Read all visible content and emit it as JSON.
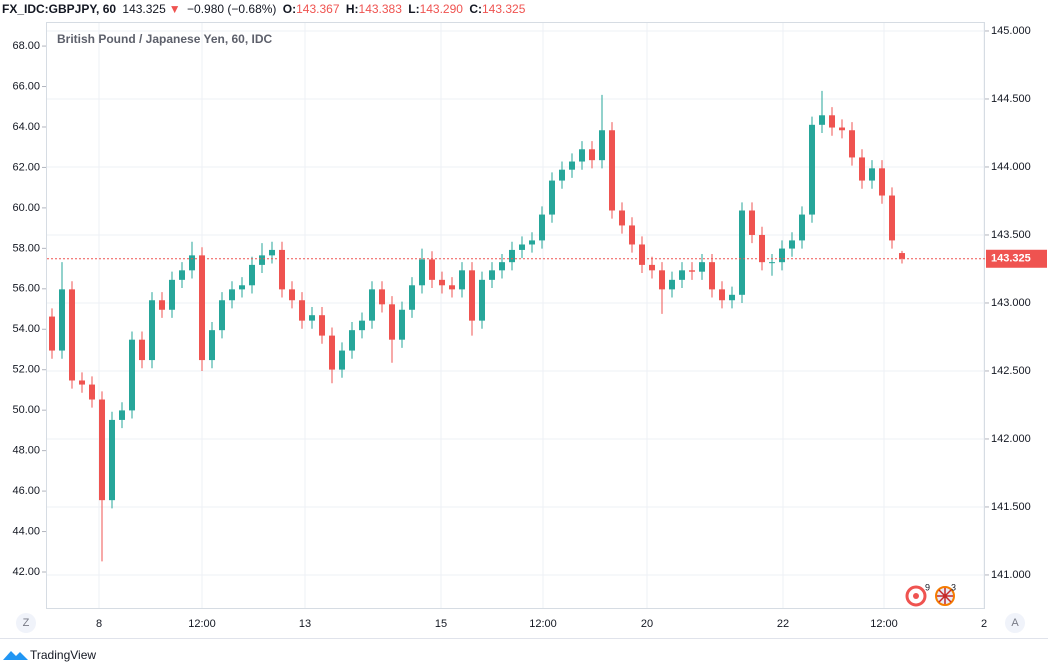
{
  "header": {
    "symbol": "FX_IDC:GBPJPY, 60",
    "last": "143.325",
    "arrow": "▼",
    "change": "−0.980 (−0.68%)",
    "ohlc": [
      {
        "label": "O:",
        "value": "143.367"
      },
      {
        "label": "H:",
        "value": "143.383"
      },
      {
        "label": "L:",
        "value": "143.290"
      },
      {
        "label": "C:",
        "value": "143.325"
      }
    ]
  },
  "chart_data": {
    "type": "candlestick",
    "title": "British Pound / Japanese Yen, 60, IDC",
    "open": [
      142.9,
      142.65,
      143.1,
      142.43,
      142.4,
      142.29,
      141.55,
      142.14,
      142.21,
      142.73,
      142.58,
      143.02,
      142.95,
      143.17,
      143.24,
      143.35,
      142.58,
      142.8,
      143.02,
      143.1,
      143.13,
      143.28,
      143.35,
      143.39,
      143.1,
      143.02,
      142.87,
      142.91,
      142.76,
      142.51,
      142.65,
      142.8,
      142.87,
      143.1,
      142.99,
      142.73,
      142.95,
      143.13,
      143.32,
      143.17,
      143.13,
      143.1,
      143.24,
      142.87,
      143.17,
      143.24,
      143.3,
      143.39,
      143.43,
      143.46,
      143.65,
      143.9,
      143.98,
      144.04,
      144.13,
      144.05,
      144.27,
      143.68,
      143.57,
      143.43,
      143.28,
      143.24,
      143.1,
      143.17,
      143.24,
      143.23,
      143.3,
      143.1,
      143.02,
      143.06,
      143.68,
      143.5,
      143.3,
      143.3,
      143.4,
      143.46,
      143.65,
      144.31,
      144.38,
      144.29,
      144.27,
      144.07,
      143.9,
      143.99,
      143.79,
      143.367
    ],
    "high": [
      142.96,
      143.3,
      143.16,
      142.49,
      142.46,
      142.35,
      142.2,
      142.27,
      142.79,
      142.79,
      143.08,
      143.08,
      143.23,
      143.3,
      143.45,
      143.41,
      142.86,
      143.08,
      143.16,
      143.19,
      143.34,
      143.44,
      143.45,
      143.45,
      143.16,
      143.08,
      142.97,
      142.97,
      142.82,
      142.71,
      142.86,
      142.93,
      143.16,
      143.16,
      143.05,
      143.01,
      143.19,
      143.4,
      143.38,
      143.23,
      143.19,
      143.3,
      143.3,
      143.23,
      143.3,
      143.36,
      143.45,
      143.49,
      143.52,
      143.71,
      143.96,
      144.04,
      144.1,
      144.19,
      144.19,
      144.53,
      144.33,
      143.74,
      143.63,
      143.49,
      143.34,
      143.3,
      143.23,
      143.3,
      143.3,
      143.36,
      143.36,
      143.16,
      143.12,
      143.74,
      143.74,
      143.56,
      143.36,
      143.46,
      143.52,
      143.71,
      144.37,
      144.56,
      144.44,
      144.35,
      144.33,
      144.13,
      144.05,
      144.05,
      143.85,
      143.383
    ],
    "low": [
      142.59,
      142.59,
      142.37,
      142.34,
      142.23,
      141.1,
      141.49,
      142.08,
      142.15,
      142.52,
      142.52,
      142.89,
      142.89,
      143.11,
      143.18,
      142.5,
      142.52,
      142.74,
      142.96,
      143.04,
      143.07,
      143.22,
      143.29,
      143.04,
      142.96,
      142.81,
      142.81,
      142.7,
      142.41,
      142.45,
      142.59,
      142.74,
      142.81,
      142.93,
      142.56,
      142.67,
      142.89,
      143.07,
      143.11,
      143.07,
      143.04,
      143.04,
      142.76,
      142.81,
      143.11,
      143.18,
      143.24,
      143.33,
      143.37,
      143.4,
      143.59,
      143.84,
      143.92,
      143.98,
      143.99,
      143.99,
      143.62,
      143.51,
      143.37,
      143.22,
      143.18,
      142.92,
      143.04,
      143.11,
      143.17,
      143.17,
      143.04,
      142.96,
      142.96,
      143.0,
      143.44,
      143.24,
      143.2,
      143.24,
      143.34,
      143.4,
      143.59,
      144.25,
      144.23,
      144.21,
      144.01,
      143.84,
      143.84,
      143.73,
      143.4,
      143.29
    ],
    "close": [
      142.65,
      143.1,
      142.43,
      142.4,
      142.29,
      141.55,
      142.14,
      142.21,
      142.73,
      142.58,
      143.02,
      142.95,
      143.17,
      143.24,
      143.35,
      142.58,
      142.8,
      143.02,
      143.1,
      143.13,
      143.28,
      143.35,
      143.39,
      143.1,
      143.02,
      142.87,
      142.91,
      142.76,
      142.51,
      142.65,
      142.8,
      142.87,
      143.1,
      142.99,
      142.73,
      142.95,
      143.13,
      143.32,
      143.17,
      143.13,
      143.1,
      143.24,
      142.87,
      143.17,
      143.24,
      143.3,
      143.39,
      143.43,
      143.46,
      143.65,
      143.9,
      143.98,
      144.04,
      144.13,
      144.05,
      144.27,
      143.68,
      143.57,
      143.43,
      143.28,
      143.24,
      143.1,
      143.17,
      143.24,
      143.23,
      143.3,
      143.1,
      143.02,
      143.06,
      143.68,
      143.5,
      143.3,
      143.3,
      143.4,
      143.46,
      143.65,
      144.31,
      144.38,
      144.29,
      144.27,
      144.07,
      143.9,
      143.99,
      143.79,
      143.46,
      143.325
    ],
    "up_color": "#26a69a",
    "down_color": "#ef5350",
    "grid": true,
    "xlim": [
      -0.5,
      93.3
    ],
    "xticks": [
      {
        "value": 4.7,
        "label": "8"
      },
      {
        "value": 15,
        "label": "12:00"
      },
      {
        "value": 25.3,
        "label": "13"
      },
      {
        "value": 38.9,
        "label": "15"
      },
      {
        "value": 49.1,
        "label": "12:00"
      },
      {
        "value": 59.5,
        "label": "20"
      },
      {
        "value": 73.1,
        "label": "22"
      },
      {
        "value": 83.2,
        "label": "12:00"
      },
      {
        "value": 93.2,
        "label": "2"
      }
    ],
    "ylim": [
      40.22,
      69.19
    ],
    "yticks": [
      {
        "value": 68,
        "label": "68.00"
      },
      {
        "value": 66,
        "label": "66.00"
      },
      {
        "value": 64,
        "label": "64.00"
      },
      {
        "value": 62,
        "label": "62.00"
      },
      {
        "value": 60,
        "label": "60.00"
      },
      {
        "value": 58,
        "label": "58.00"
      },
      {
        "value": 56,
        "label": "56.00"
      },
      {
        "value": 54,
        "label": "54.00"
      },
      {
        "value": 52,
        "label": "52.00"
      },
      {
        "value": 50,
        "label": "50.00"
      },
      {
        "value": 48,
        "label": "48.00"
      },
      {
        "value": 46,
        "label": "46.00"
      },
      {
        "value": 44,
        "label": "44.00"
      },
      {
        "value": 42,
        "label": "42.00"
      }
    ],
    "y2lim": [
      140.757,
      145.066
    ],
    "y2ticks": [
      {
        "value": 145,
        "label": "145.000"
      },
      {
        "value": 144.5,
        "label": "144.500"
      },
      {
        "value": 144,
        "label": "144.000"
      },
      {
        "value": 143.5,
        "label": "143.500"
      },
      {
        "value": 143,
        "label": "143.000"
      },
      {
        "value": 142.5,
        "label": "142.500"
      },
      {
        "value": 142,
        "label": "142.000"
      },
      {
        "value": 141.5,
        "label": "141.500"
      },
      {
        "value": 141,
        "label": "141.000"
      }
    ],
    "price_line": {
      "value": 143.325,
      "label": "143.325"
    }
  },
  "toolbar": {
    "left": "Z",
    "right": "A"
  },
  "badges": [
    "9",
    "3"
  ],
  "brand": "TradingView"
}
